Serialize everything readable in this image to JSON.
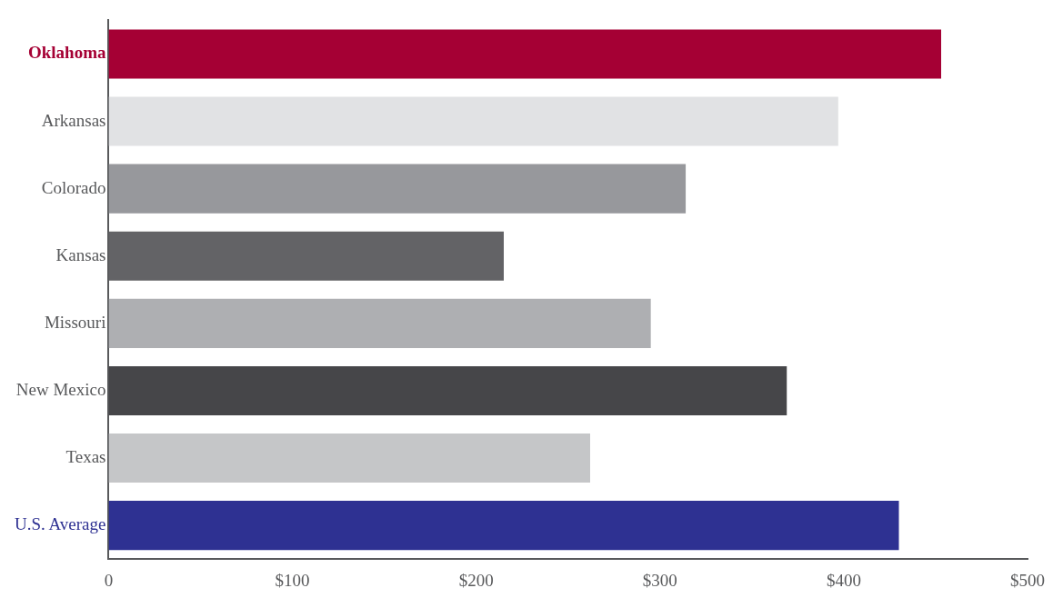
{
  "chart_data": {
    "type": "bar",
    "orientation": "horizontal",
    "categories": [
      "Oklahoma",
      "Arkansas",
      "Colorado",
      "Kansas",
      "Missouri",
      "New Mexico",
      "Texas",
      "U.S. Average"
    ],
    "values": [
      453,
      397,
      314,
      215,
      295,
      369,
      262,
      430
    ],
    "colors": [
      "#a50034",
      "#e1e2e4",
      "#97989c",
      "#636366",
      "#aeafb2",
      "#464649",
      "#c5c6c8",
      "#2e3192"
    ],
    "xlim": [
      0,
      500
    ],
    "xticks": [
      0,
      {
        "value": 100,
        "label": "$100"
      },
      {
        "value": 200,
        "label": "$200"
      },
      {
        "value": 300,
        "label": "$300"
      },
      {
        "value": 400,
        "label": "$400"
      },
      {
        "value": 500,
        "label": "$500"
      }
    ],
    "grid": false,
    "legend": false
  }
}
